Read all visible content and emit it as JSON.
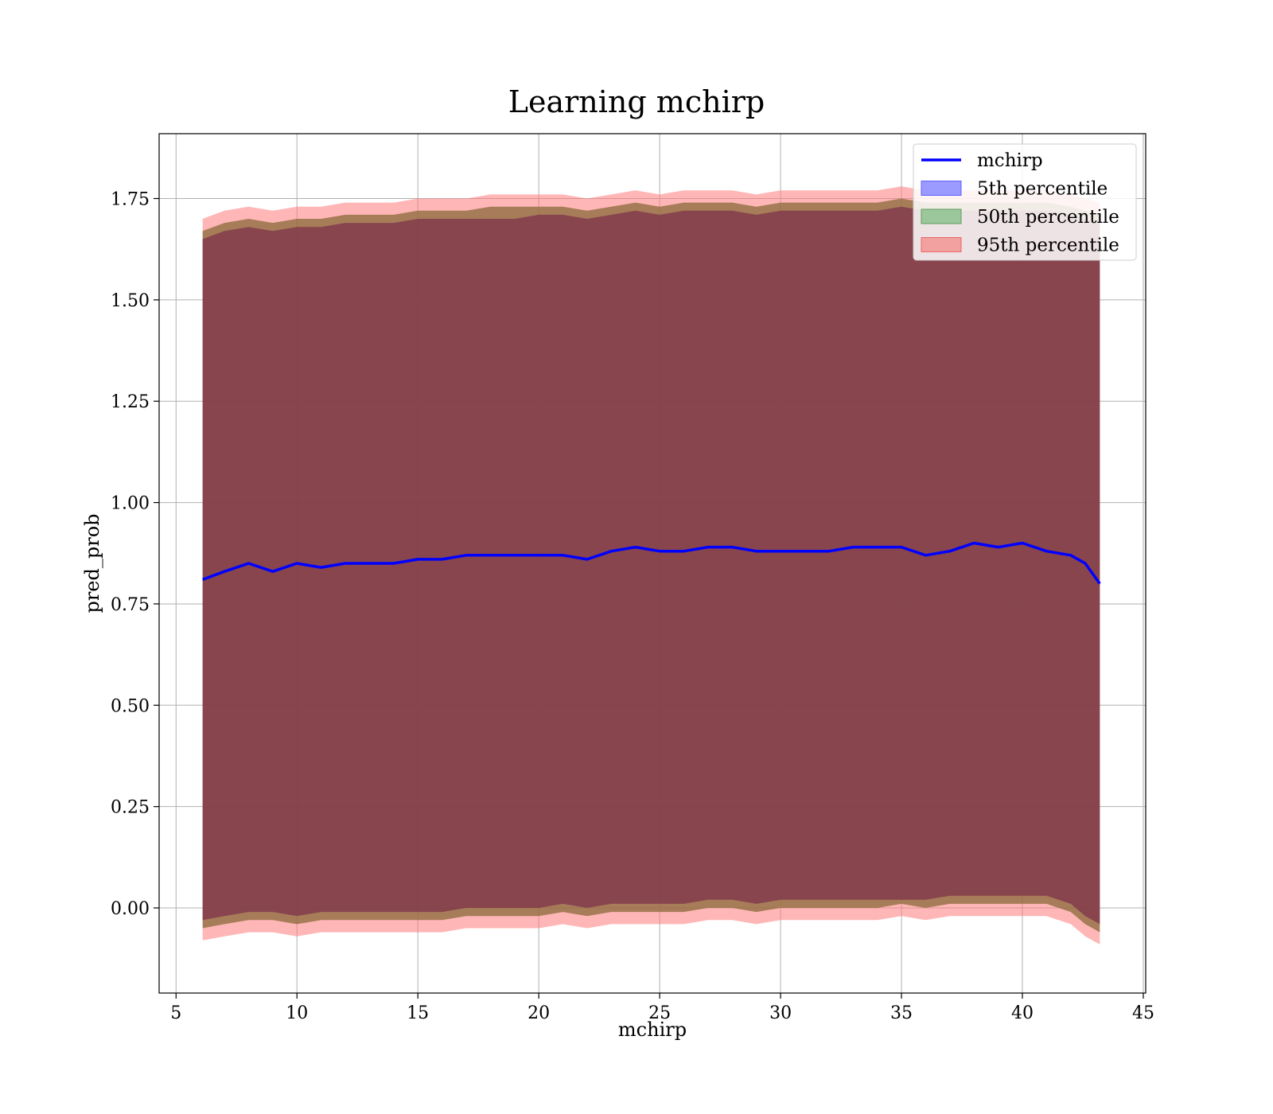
{
  "chart_data": {
    "type": "line",
    "title": "Learning mchirp",
    "xlabel": "mchirp",
    "ylabel": "pred_prob",
    "xlim": [
      4.3,
      45.1
    ],
    "ylim": [
      -0.21,
      1.91
    ],
    "xticks": [
      5,
      10,
      15,
      20,
      25,
      30,
      35,
      40,
      45
    ],
    "yticks": [
      0.0,
      0.25,
      0.5,
      0.75,
      1.0,
      1.25,
      1.5,
      1.75
    ],
    "ytick_labels": [
      "0.00",
      "0.25",
      "0.50",
      "0.75",
      "1.00",
      "1.25",
      "1.50",
      "1.75"
    ],
    "grid": true,
    "legend_position": "top-right",
    "colors": {
      "line": "#0000ff",
      "p5": "#7b2e4a",
      "p50": "#8a6a3a",
      "p95": "#ff7a7a"
    },
    "legend": [
      "mchirp",
      "5th percentile",
      "50th percentile",
      "95th percentile"
    ],
    "x": [
      6.1,
      7,
      8,
      9,
      10,
      11,
      12,
      13,
      14,
      15,
      16,
      17,
      18,
      19,
      20,
      21,
      22,
      23,
      24,
      25,
      26,
      27,
      28,
      29,
      30,
      31,
      32,
      33,
      34,
      35,
      36,
      37,
      38,
      39,
      40,
      41,
      42,
      42.6,
      43.2
    ],
    "series": [
      {
        "name": "mchirp",
        "values": [
          0.81,
          0.83,
          0.85,
          0.83,
          0.85,
          0.84,
          0.85,
          0.85,
          0.85,
          0.86,
          0.86,
          0.87,
          0.87,
          0.87,
          0.87,
          0.87,
          0.86,
          0.88,
          0.89,
          0.88,
          0.88,
          0.89,
          0.89,
          0.88,
          0.88,
          0.88,
          0.88,
          0.89,
          0.89,
          0.89,
          0.87,
          0.88,
          0.9,
          0.89,
          0.9,
          0.88,
          0.87,
          0.85,
          0.8
        ]
      },
      {
        "name": "5th percentile",
        "lower": [
          -0.03,
          -0.02,
          -0.01,
          -0.01,
          -0.02,
          -0.01,
          -0.01,
          -0.01,
          -0.01,
          -0.01,
          -0.01,
          0.0,
          0.0,
          0.0,
          0.0,
          0.01,
          0.0,
          0.01,
          0.01,
          0.01,
          0.01,
          0.02,
          0.02,
          0.01,
          0.02,
          0.02,
          0.02,
          0.02,
          0.02,
          0.02,
          0.02,
          0.03,
          0.03,
          0.03,
          0.03,
          0.03,
          0.01,
          -0.02,
          -0.04
        ],
        "upper": [
          1.65,
          1.67,
          1.68,
          1.67,
          1.68,
          1.68,
          1.69,
          1.69,
          1.69,
          1.7,
          1.7,
          1.7,
          1.7,
          1.7,
          1.71,
          1.71,
          1.7,
          1.71,
          1.72,
          1.71,
          1.72,
          1.72,
          1.72,
          1.71,
          1.72,
          1.72,
          1.72,
          1.72,
          1.72,
          1.73,
          1.72,
          1.72,
          1.72,
          1.72,
          1.72,
          1.72,
          1.71,
          1.7,
          1.69
        ]
      },
      {
        "name": "50th percentile",
        "lower": [
          -0.05,
          -0.04,
          -0.03,
          -0.03,
          -0.04,
          -0.03,
          -0.03,
          -0.03,
          -0.03,
          -0.03,
          -0.03,
          -0.02,
          -0.02,
          -0.02,
          -0.02,
          -0.01,
          -0.02,
          -0.01,
          -0.01,
          -0.01,
          -0.01,
          0.0,
          0.0,
          -0.01,
          0.0,
          0.0,
          0.0,
          0.0,
          0.0,
          0.01,
          0.0,
          0.01,
          0.01,
          0.01,
          0.01,
          0.01,
          -0.01,
          -0.04,
          -0.06
        ],
        "upper": [
          1.67,
          1.69,
          1.7,
          1.69,
          1.7,
          1.7,
          1.71,
          1.71,
          1.71,
          1.72,
          1.72,
          1.72,
          1.73,
          1.73,
          1.73,
          1.73,
          1.72,
          1.73,
          1.74,
          1.73,
          1.74,
          1.74,
          1.74,
          1.73,
          1.74,
          1.74,
          1.74,
          1.74,
          1.74,
          1.75,
          1.74,
          1.74,
          1.74,
          1.74,
          1.74,
          1.74,
          1.73,
          1.72,
          1.71
        ]
      },
      {
        "name": "95th percentile",
        "lower": [
          -0.08,
          -0.07,
          -0.06,
          -0.06,
          -0.07,
          -0.06,
          -0.06,
          -0.06,
          -0.06,
          -0.06,
          -0.06,
          -0.05,
          -0.05,
          -0.05,
          -0.05,
          -0.04,
          -0.05,
          -0.04,
          -0.04,
          -0.04,
          -0.04,
          -0.03,
          -0.03,
          -0.04,
          -0.03,
          -0.03,
          -0.03,
          -0.03,
          -0.03,
          -0.02,
          -0.03,
          -0.02,
          -0.02,
          -0.02,
          -0.02,
          -0.02,
          -0.04,
          -0.07,
          -0.09
        ],
        "upper": [
          1.7,
          1.72,
          1.73,
          1.72,
          1.73,
          1.73,
          1.74,
          1.74,
          1.74,
          1.75,
          1.75,
          1.75,
          1.76,
          1.76,
          1.76,
          1.76,
          1.75,
          1.76,
          1.77,
          1.76,
          1.77,
          1.77,
          1.77,
          1.76,
          1.77,
          1.77,
          1.77,
          1.77,
          1.77,
          1.78,
          1.77,
          1.77,
          1.77,
          1.77,
          1.77,
          1.77,
          1.76,
          1.75,
          1.74
        ]
      }
    ]
  }
}
